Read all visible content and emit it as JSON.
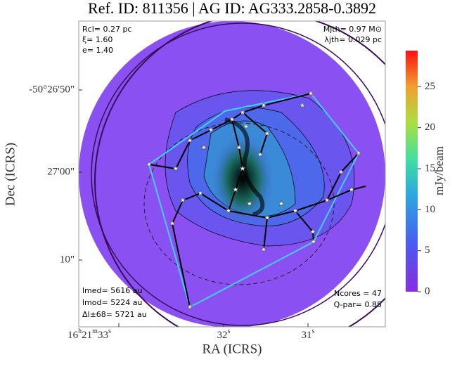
{
  "chart_data": {
    "type": "image",
    "title": "Ref. ID: 811356 | AG ID: AG333.2858-0.3892",
    "xlabel": "RA (ICRS)",
    "ylabel": "Dec (ICRS)",
    "xtick_labels": [
      "16h21m33s",
      "32s",
      "31s"
    ],
    "ytick_labels": [
      "-50°26'50\"",
      "27'00\"",
      "10\""
    ],
    "colorbar": {
      "label": "mJy/beam",
      "lim": [
        0,
        29.4
      ],
      "ticks": [
        0,
        5,
        10,
        15,
        20,
        25
      ]
    },
    "annotations": {
      "top_left": [
        "Rcl= 0.27 pc",
        "ξ= 1.60",
        "e= 1.40"
      ],
      "top_right": [
        "Mjth= 0.97 M⊙",
        "λjth= 0.029 pc"
      ],
      "bottom_left": [
        "lmed= 5616 au",
        "lmod= 5224 au",
        "Δl±68= 5721 au"
      ],
      "bottom_right": [
        "Ncores = 47",
        "Q-par= 0.85"
      ]
    }
  }
}
